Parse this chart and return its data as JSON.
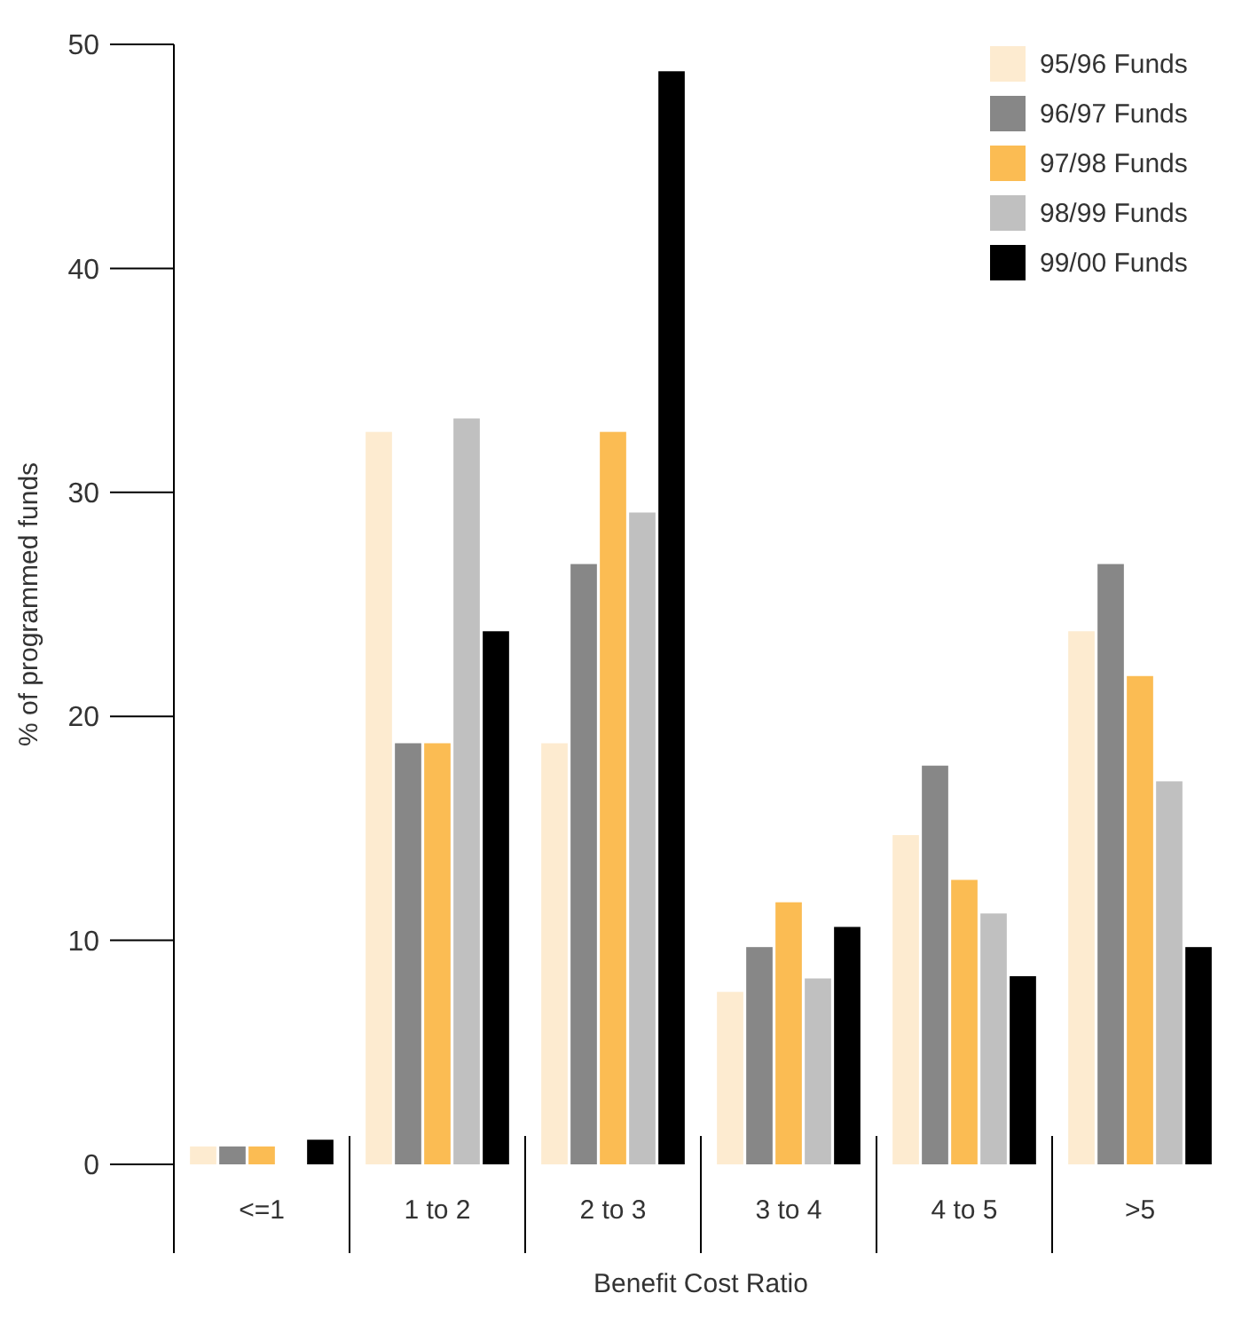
{
  "chart_data": {
    "type": "bar",
    "xlabel": "Benefit Cost Ratio",
    "ylabel": "% of programmed funds",
    "categories": [
      "<=1",
      "1 to 2",
      "2 to 3",
      "3 to 4",
      "4 to 5",
      ">5"
    ],
    "series": [
      {
        "name": "95/96 Funds",
        "color": "#fdebd0",
        "values": [
          0.8,
          32.7,
          18.8,
          7.7,
          14.7,
          23.8
        ]
      },
      {
        "name": "96/97 Funds",
        "color": "#878787",
        "values": [
          0.8,
          18.8,
          26.8,
          9.7,
          17.8,
          26.8
        ]
      },
      {
        "name": "97/98 Funds",
        "color": "#fbbc53",
        "values": [
          0.8,
          18.8,
          32.7,
          11.7,
          12.7,
          21.8
        ]
      },
      {
        "name": "98/99 Funds",
        "color": "#c0c0c0",
        "values": [
          0,
          33.3,
          29.1,
          8.3,
          11.2,
          17.1
        ]
      },
      {
        "name": "99/00 Funds",
        "color": "#000000",
        "values": [
          1.1,
          23.8,
          48.8,
          10.6,
          8.4,
          9.7
        ]
      }
    ],
    "ylim": [
      0,
      50
    ],
    "yticks": [
      0,
      10,
      20,
      30,
      40,
      50
    ],
    "legend": "top right"
  }
}
